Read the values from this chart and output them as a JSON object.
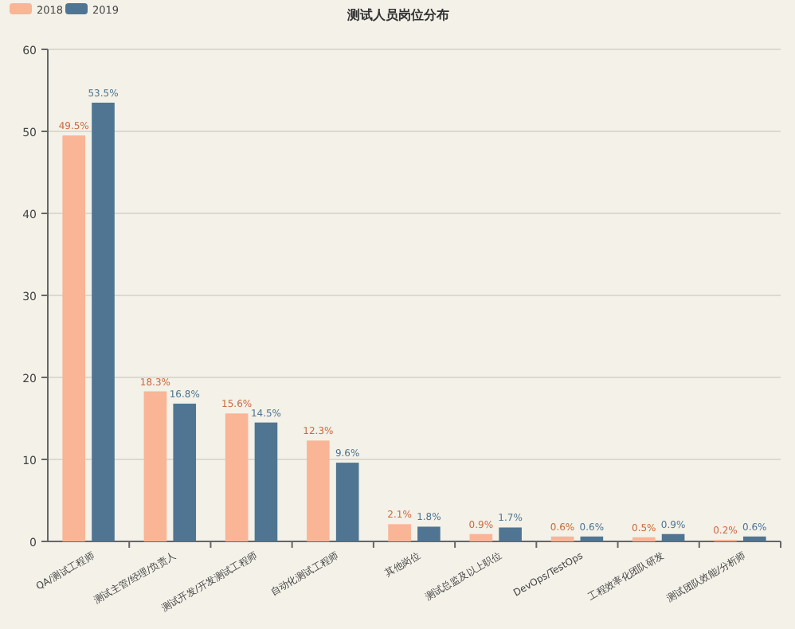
{
  "chart_data": {
    "type": "bar",
    "title": "测试人员岗位分布",
    "categories": [
      "QA/测试工程师",
      "测试主管/经理/负责人",
      "测试开发/开发测试工程师",
      "自动化测试工程师",
      "其他岗位",
      "测试总监及以上职位",
      "DevOps/TestOps",
      "工程效率化团队研发",
      "测试团队效能/分析师"
    ],
    "series": [
      {
        "name": "2018",
        "color": "#f9b596",
        "values": [
          49.5,
          18.3,
          15.6,
          12.3,
          2.1,
          0.9,
          0.6,
          0.5,
          0.2
        ],
        "value_labels": [
          "49.5%",
          "18.3%",
          "15.6%",
          "12.3%",
          "2.1%",
          "0.9%",
          "0.6%",
          "0.5%",
          "0.2%"
        ]
      },
      {
        "name": "2019",
        "color": "#4f7592",
        "values": [
          53.5,
          16.8,
          14.5,
          9.6,
          1.8,
          1.7,
          0.6,
          0.9,
          0.6
        ],
        "value_labels": [
          "53.5%",
          "16.8%",
          "14.5%",
          "9.6%",
          "1.8%",
          "1.7%",
          "0.6%",
          "0.9%",
          "0.6%"
        ]
      }
    ],
    "ylim": [
      0,
      60
    ],
    "yticks": [
      0,
      10,
      20,
      30,
      40,
      50,
      60
    ],
    "grid": "y",
    "legend": "top left"
  }
}
